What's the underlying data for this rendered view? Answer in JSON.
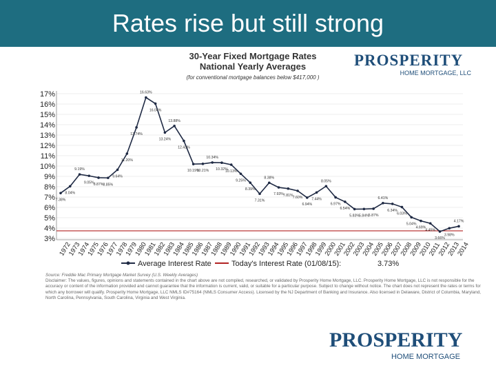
{
  "slide": {
    "title": "Rates rise but still strong"
  },
  "logo": {
    "name": "PROSPERITY",
    "subtitle": "HOME MORTGAGE, LLC"
  },
  "logo_bottom": {
    "name": "PROSPERITY",
    "subtitle": "HOME MORTGAGE"
  },
  "source": {
    "line": "Source: Freddie Mac Primary Mortgage Market Survey (U.S. Weekly Averages)",
    "disclaimer": "Disclaimer: The values, figures, opinions and statements contained in the chart above are not compiled, researched, or validated by Prosperity Home Mortgage, LLC. Prosperity Home Mortgage, LLC is not responsible for the accuracy or content of the information provided and cannot guarantee that the information is current, valid, or suitable for a particular purpose. Subject to change without notice. The chart does not represent the rates or terms for which any borrower will qualify. Prosperity Home Mortgage, LLC NMLS ID#75164 (NMLS Consumer Access). Licensed by the NJ Department of Banking and Insurance. Also licensed in Delaware, District of Columbia, Maryland, North Carolina, Pennsylvania, South Carolina, Virginia and West Virginia."
  },
  "colors": {
    "header": "#1e6d80",
    "series": "#1f2a44",
    "reference": "#b22222"
  },
  "chart_data": {
    "type": "line",
    "title": "30-Year Fixed Mortgage Rates",
    "subtitle": "National Yearly Averages",
    "note": "(for conventional mortgage balances below $417,000 )",
    "y_tick_labels": [
      "3%",
      "4%",
      "5%",
      "6%",
      "7%",
      "8%",
      "9%",
      "10%",
      "11%",
      "12%",
      "13%",
      "14%",
      "15%",
      "16%",
      "17%"
    ],
    "ylim": [
      3,
      17
    ],
    "x": [
      "1972",
      "1973",
      "1974",
      "1975",
      "1976",
      "1977",
      "1978",
      "1979",
      "1980",
      "1981",
      "1982",
      "1983",
      "1984",
      "1985",
      "1986",
      "1987",
      "1988",
      "1989",
      "1990",
      "1991",
      "1992",
      "1993",
      "1994",
      "1995",
      "1996",
      "1997",
      "1998",
      "1999",
      "2000",
      "2001",
      "2002",
      "2003",
      "2004",
      "2005",
      "2006",
      "2007",
      "2008",
      "2009",
      "2010",
      "2011",
      "2012",
      "2013",
      "2014"
    ],
    "series": [
      {
        "name": "Average Interest Rate",
        "values": [
          7.38,
          8.04,
          9.19,
          9.05,
          8.87,
          8.85,
          9.64,
          11.2,
          13.74,
          16.63,
          16.04,
          13.24,
          13.88,
          12.43,
          10.19,
          10.21,
          10.34,
          10.32,
          10.13,
          9.25,
          8.39,
          7.31,
          8.38,
          7.93,
          7.81,
          7.6,
          6.94,
          7.44,
          8.05,
          6.97,
          6.54,
          5.83,
          5.84,
          5.87,
          6.41,
          6.34,
          6.03,
          5.04,
          4.69,
          4.45,
          3.66,
          3.98,
          4.17
        ]
      }
    ],
    "data_labels": [
      "7.38%",
      "8.04%",
      "9.19%",
      "9.05%",
      "8.87%",
      "8.85%",
      "9.64%",
      "11.20%",
      "13.74%",
      "16.63%",
      "16.04%",
      "13.24%",
      "13.88%",
      "12.43%",
      "10.19%",
      "10.21%",
      "10.34%",
      "10.32%",
      "10.13%",
      "9.25%",
      "8.39%",
      "7.31%",
      "8.38%",
      "7.93%",
      "7.81%",
      "7.60%",
      "6.94%",
      "7.44%",
      "8.05%",
      "6.97%",
      "6.54%",
      "5.83%",
      "5.84%",
      "5.87%",
      "6.41%",
      "6.34%",
      "6.03%",
      "5.04%",
      "4.69%",
      "4.45%",
      "3.66%",
      "3.98%",
      "4.17%"
    ],
    "reference_line": {
      "label": "Today's Interest Rate (01/08/15):",
      "value_label": "3.73%",
      "value": 3.73
    },
    "legend": {
      "series_label": "Average Interest Rate",
      "position": "bottom"
    },
    "xlabel": "",
    "ylabel": ""
  }
}
